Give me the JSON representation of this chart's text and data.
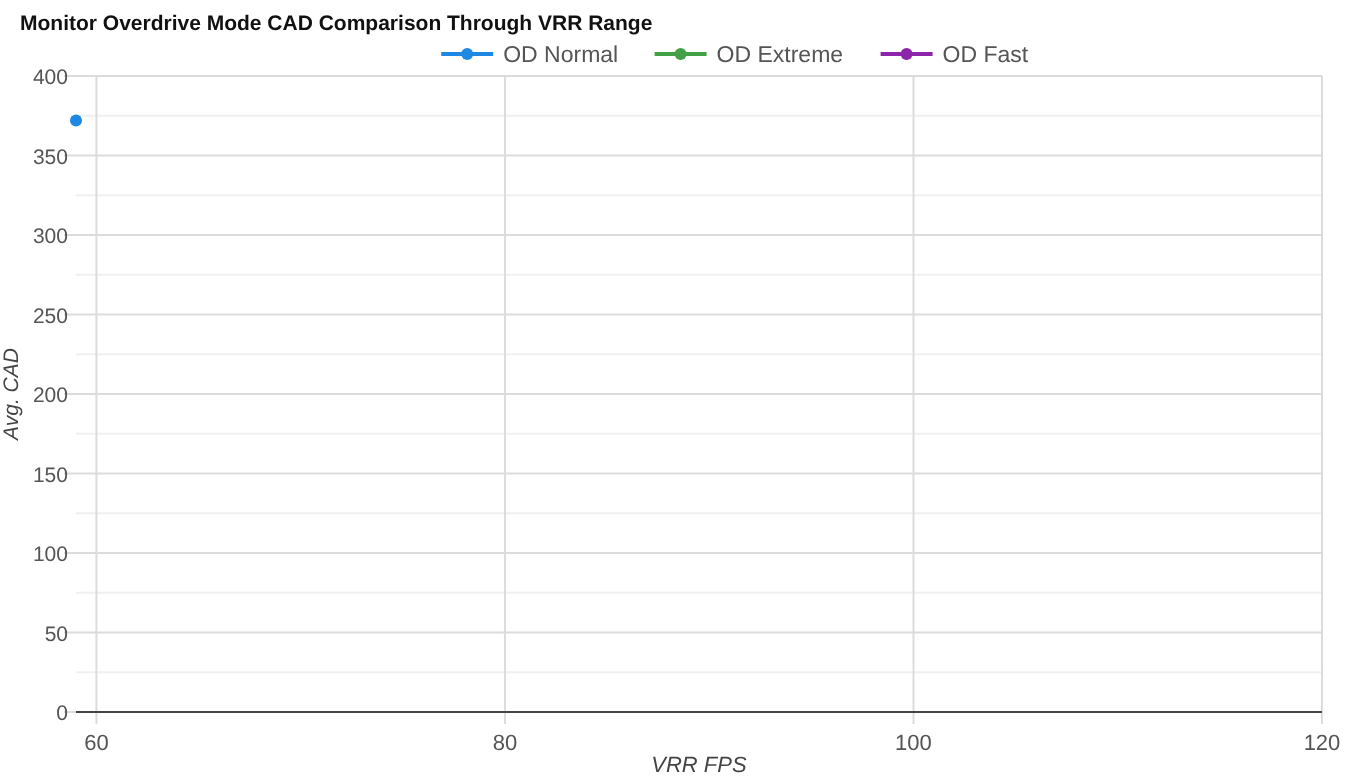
{
  "chart_data": {
    "type": "line",
    "title": "Monitor Overdrive Mode CAD Comparison Through VRR Range",
    "xlabel": "VRR FPS",
    "ylabel": "Avg. CAD",
    "xlim": [
      59,
      120
    ],
    "xticks": [
      60,
      80,
      100,
      120
    ],
    "ylim": [
      0,
      400
    ],
    "yticks": [
      0,
      {
        "value": 25,
        "label": null
      },
      50,
      {
        "value": 75,
        "label": null
      },
      100,
      {
        "value": 125,
        "label": null
      },
      150,
      {
        "value": 175,
        "label": null
      },
      200,
      {
        "value": 225,
        "label": null
      },
      250,
      {
        "value": 275,
        "label": null
      },
      300,
      {
        "value": 325,
        "label": null
      },
      350,
      {
        "value": 375,
        "label": null
      },
      400
    ],
    "grid": true,
    "legend": "top",
    "marker": "circle",
    "line_style": "solid",
    "series": [
      {
        "name": "OD Normal",
        "color": "#1e88e5",
        "x": [
          59
        ],
        "values": [
          372
        ]
      },
      {
        "name": "OD Extreme",
        "color": "#43a047"
      },
      {
        "name": "OD Fast",
        "color": "#8e24aa"
      }
    ]
  }
}
